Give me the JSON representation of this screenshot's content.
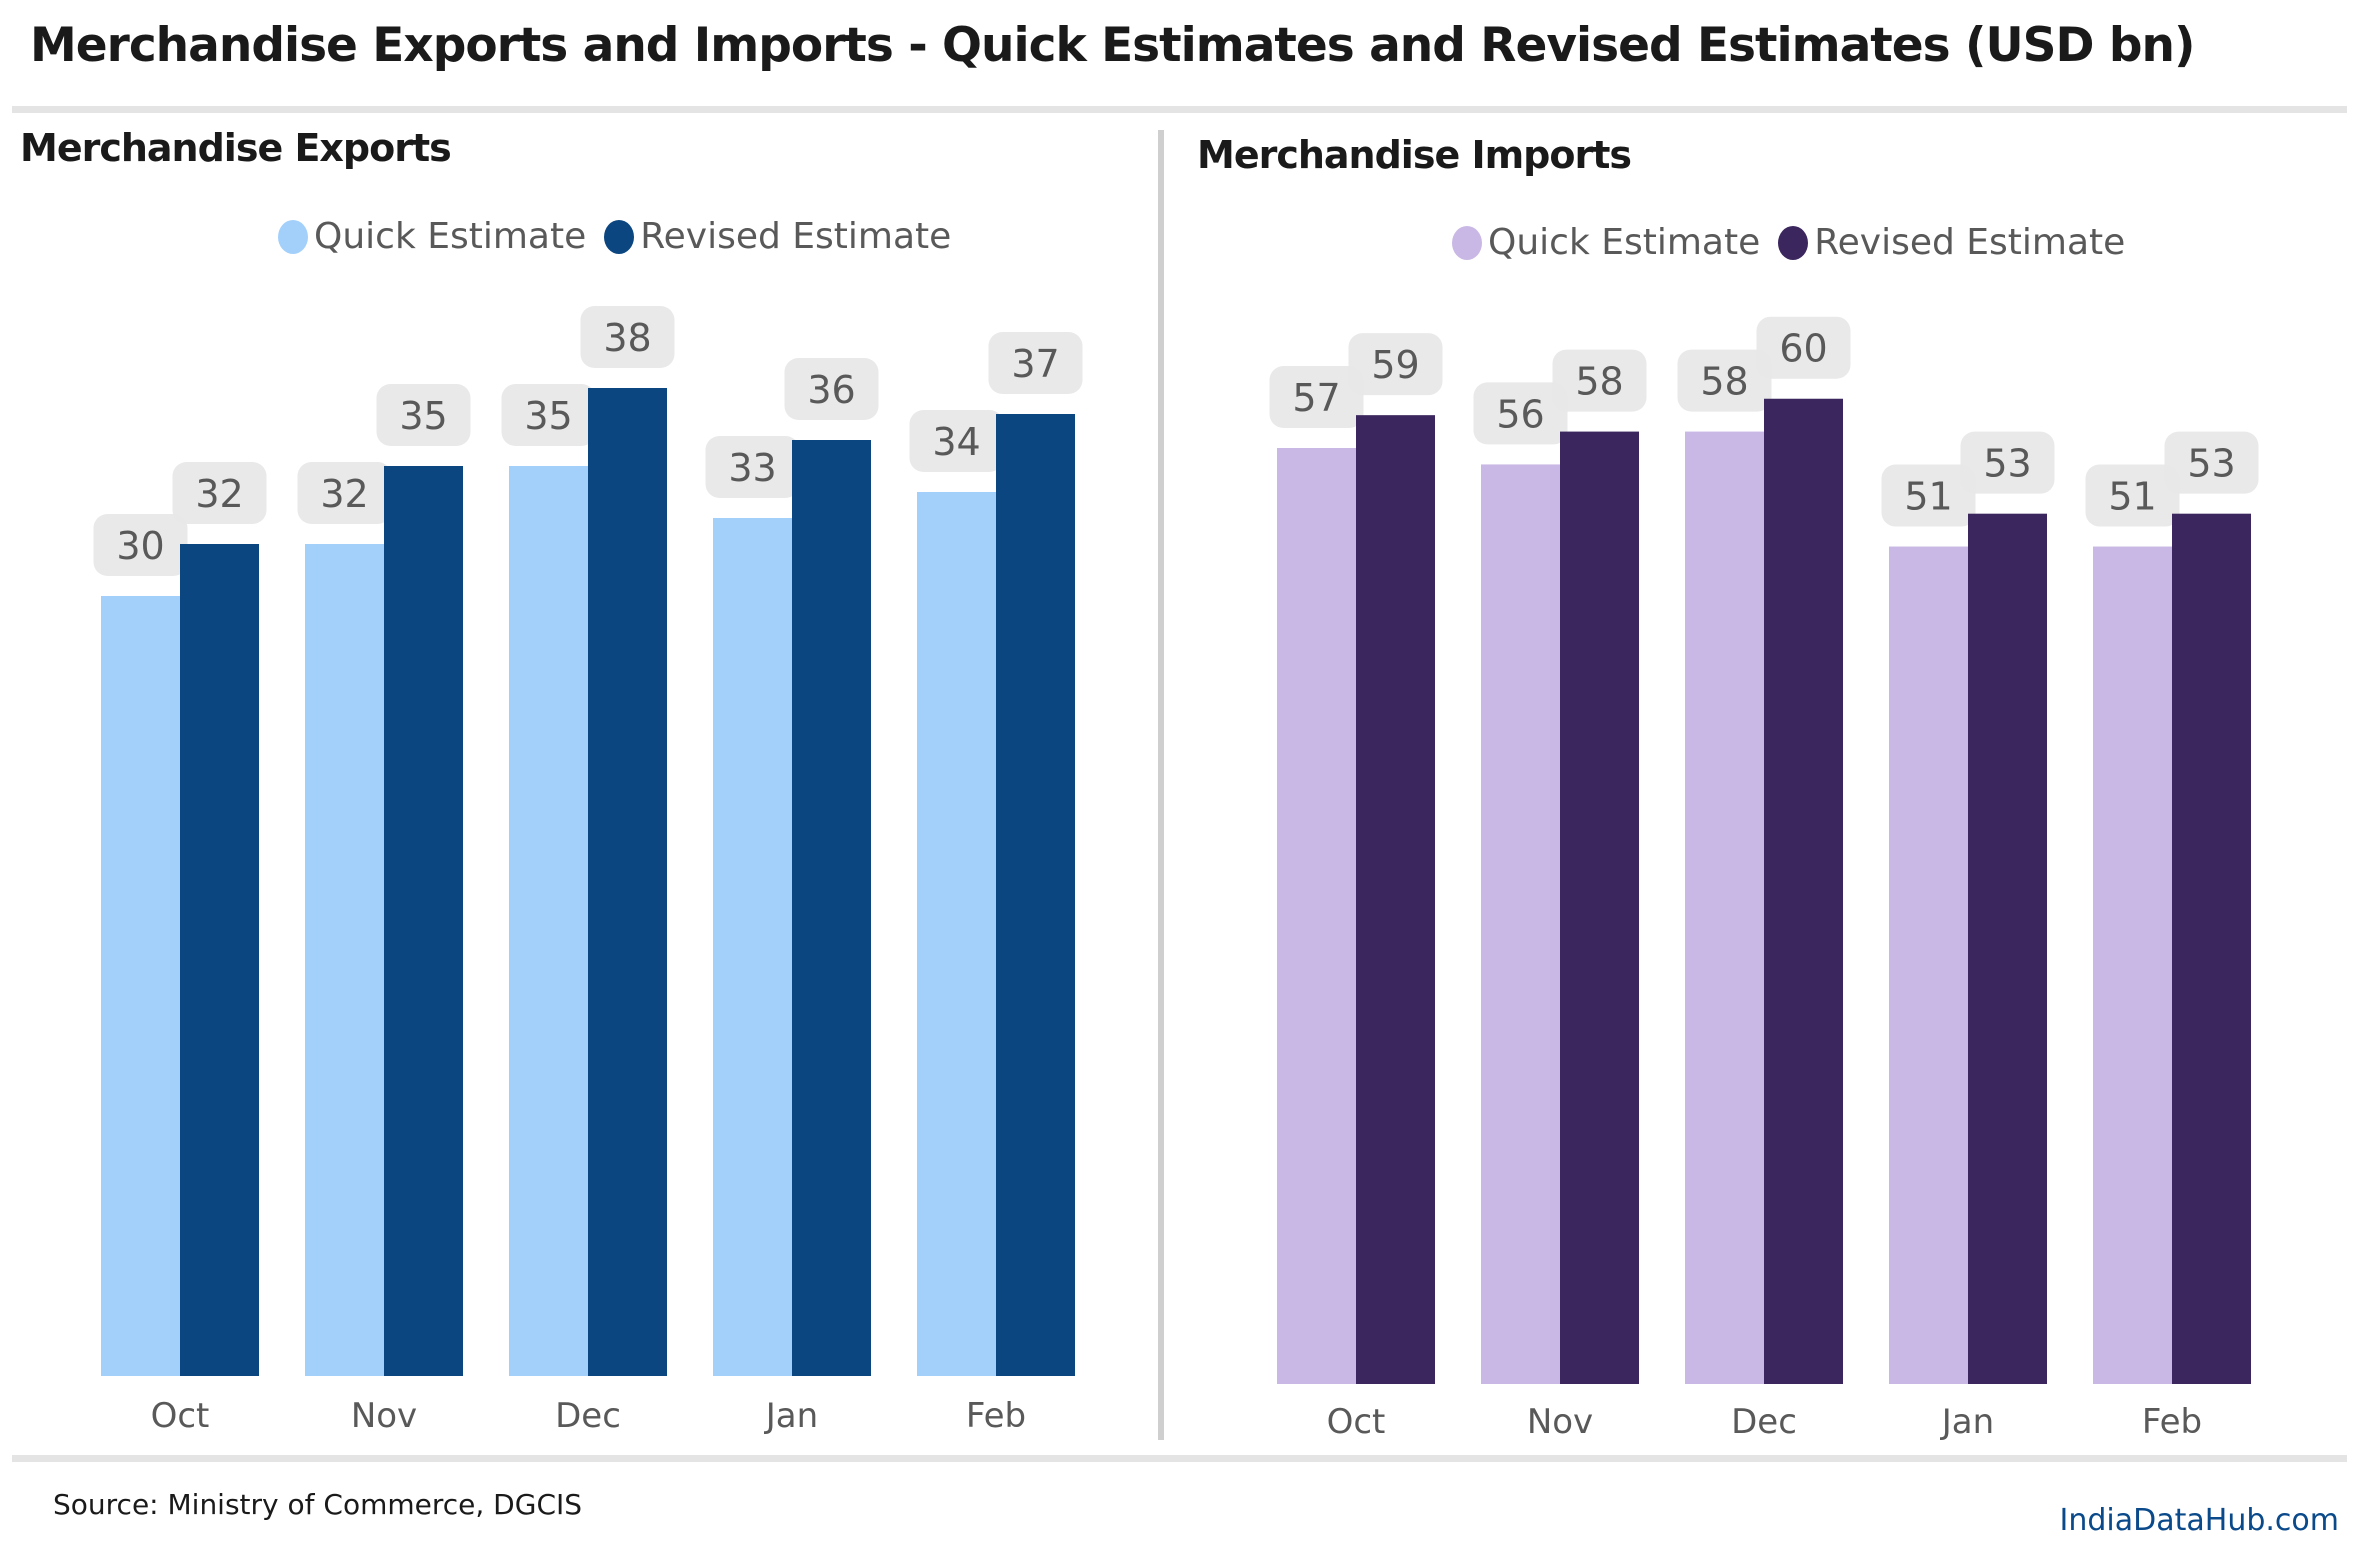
{
  "title": "Merchandise Exports and Imports - Quick Estimates and Revised Estimates (USD bn)",
  "source": "Source: Ministry of Commerce, DGCIS",
  "brand": "IndiaDataHub.com",
  "chart_data": [
    {
      "type": "bar",
      "title": "Merchandise Exports",
      "categories": [
        "Oct",
        "Nov",
        "Dec",
        "Jan",
        "Feb"
      ],
      "series": [
        {
          "name": "Quick Estimate",
          "values": [
            30,
            32,
            35,
            33,
            34
          ],
          "color": "#a3d0fb"
        },
        {
          "name": "Revised Estimate",
          "values": [
            32,
            35,
            38,
            36,
            37
          ],
          "color": "#0b4680"
        }
      ],
      "xlabel": "",
      "ylabel": "",
      "ylim": [
        0,
        42
      ],
      "grid": false,
      "legend": "top-center"
    },
    {
      "type": "bar",
      "title": "Merchandise Imports",
      "categories": [
        "Oct",
        "Nov",
        "Dec",
        "Jan",
        "Feb"
      ],
      "series": [
        {
          "name": "Quick Estimate",
          "values": [
            57,
            56,
            58,
            51,
            51
          ],
          "color": "#c9b8e5"
        },
        {
          "name": "Revised Estimate",
          "values": [
            59,
            58,
            60,
            53,
            53
          ],
          "color": "#3b275e"
        }
      ],
      "xlabel": "",
      "ylabel": "",
      "ylim": [
        0,
        66.5
      ],
      "grid": false,
      "legend": "top-center"
    }
  ]
}
